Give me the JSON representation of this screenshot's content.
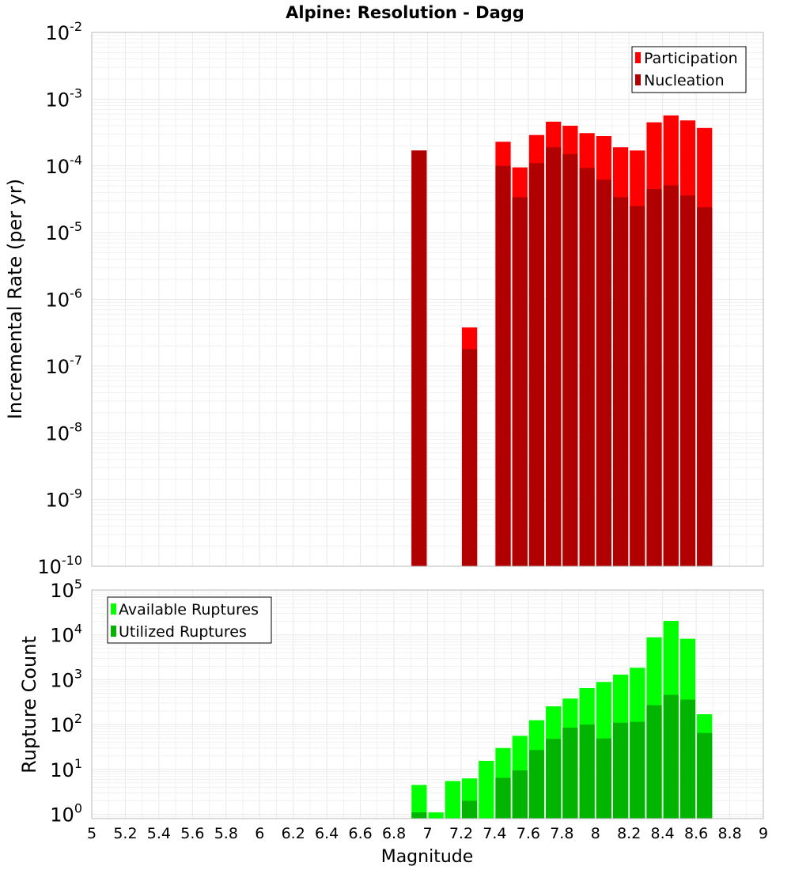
{
  "title": "Alpine: Resolution - Dagg",
  "xlabel": "Magnitude",
  "x_ticks": [
    "5",
    "5.2",
    "5.4",
    "5.6",
    "5.8",
    "6",
    "6.2",
    "6.4",
    "6.6",
    "6.8",
    "7",
    "7.2",
    "7.4",
    "7.6",
    "7.8",
    "8",
    "8.2",
    "8.4",
    "8.6",
    "8.8",
    "9"
  ],
  "colors": {
    "participation": "#ff0000",
    "nucleation": "#b00000",
    "available": "#00ff00",
    "utilized": "#00b400"
  },
  "chart_data": [
    {
      "type": "bar",
      "title": "Alpine: Resolution - Dagg",
      "ylabel": "Incremental Rate (per yr)",
      "xlabel": "Magnitude",
      "y_scale": "log",
      "xlim": [
        5,
        9
      ],
      "ylim": [
        1e-10,
        0.01
      ],
      "y_tick_exponents": [
        -10,
        -9,
        -8,
        -7,
        -6,
        -5,
        -4,
        -3,
        -2
      ],
      "bar_width": 0.1,
      "legend_position": "top-right",
      "x": [
        6.95,
        7.25,
        7.45,
        7.55,
        7.65,
        7.75,
        7.85,
        7.95,
        8.05,
        8.15,
        8.25,
        8.35,
        8.45,
        8.55,
        8.65
      ],
      "series": [
        {
          "name": "Participation",
          "values": [
            0.00017,
            3.8e-07,
            0.00023,
            9.5e-05,
            0.00029,
            0.00046,
            0.0004,
            0.00031,
            0.00028,
            0.00019,
            0.00017,
            0.00045,
            0.00057,
            0.00048,
            0.00037
          ]
        },
        {
          "name": "Nucleation",
          "values": [
            0.00017,
            1.8e-07,
            0.0001,
            3.4e-05,
            0.00011,
            0.00019,
            0.00015,
            9.3e-05,
            6.2e-05,
            3.4e-05,
            2.5e-05,
            4.5e-05,
            5.1e-05,
            3.6e-05,
            2.4e-05
          ]
        }
      ]
    },
    {
      "type": "bar",
      "ylabel": "Rupture Count",
      "xlabel": "Magnitude",
      "y_scale": "log",
      "xlim": [
        5,
        9
      ],
      "ylim": [
        0.8,
        100000
      ],
      "y_tick_exponents": [
        0,
        1,
        2,
        3,
        4,
        5
      ],
      "bar_width": 0.1,
      "legend_position": "top-left",
      "x": [
        6.95,
        7.05,
        7.15,
        7.25,
        7.35,
        7.45,
        7.55,
        7.65,
        7.75,
        7.85,
        7.95,
        8.05,
        8.15,
        8.25,
        8.35,
        8.45,
        8.55,
        8.65
      ],
      "series": [
        {
          "name": "Available Ruptures",
          "values": [
            4.5,
            1.1,
            5.5,
            6.3,
            15.5,
            30,
            56,
            125,
            255,
            380,
            650,
            890,
            1300,
            1850,
            8800,
            20500,
            8200,
            170
          ]
        },
        {
          "name": "Utilized Ruptures",
          "values": [
            1.1,
            0,
            0,
            2,
            0,
            6.5,
            9.5,
            27,
            48,
            85,
            100,
            49,
            110,
            115,
            270,
            460,
            360,
            65
          ]
        }
      ]
    }
  ]
}
